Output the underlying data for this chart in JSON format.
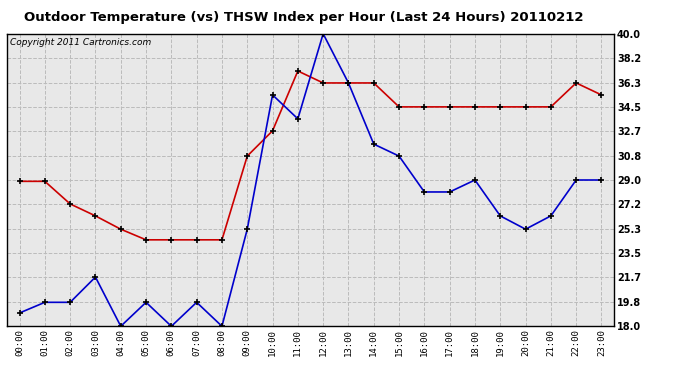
{
  "title": "Outdoor Temperature (vs) THSW Index per Hour (Last 24 Hours) 20110212",
  "copyright": "Copyright 2011 Cartronics.com",
  "hours": [
    "00:00",
    "01:00",
    "02:00",
    "03:00",
    "04:00",
    "05:00",
    "06:00",
    "07:00",
    "08:00",
    "09:00",
    "10:00",
    "11:00",
    "12:00",
    "13:00",
    "14:00",
    "15:00",
    "16:00",
    "17:00",
    "18:00",
    "19:00",
    "20:00",
    "21:00",
    "22:00",
    "23:00"
  ],
  "temp_red": [
    28.9,
    28.9,
    27.2,
    26.3,
    25.3,
    24.5,
    24.5,
    24.5,
    24.5,
    30.8,
    32.7,
    37.2,
    36.3,
    36.3,
    36.3,
    34.5,
    34.5,
    34.5,
    34.5,
    34.5,
    34.5,
    34.5,
    36.3,
    35.4
  ],
  "thsw_blue": [
    19.0,
    19.8,
    19.8,
    21.7,
    18.0,
    19.8,
    18.0,
    19.8,
    18.0,
    25.3,
    35.4,
    33.6,
    40.0,
    36.3,
    31.7,
    30.8,
    28.1,
    28.1,
    29.0,
    26.3,
    25.3,
    26.3,
    29.0,
    29.0
  ],
  "ylim": [
    18.0,
    40.0
  ],
  "yticks": [
    18.0,
    19.8,
    21.7,
    23.5,
    25.3,
    27.2,
    29.0,
    30.8,
    32.7,
    34.5,
    36.3,
    38.2,
    40.0
  ],
  "bg_color": "#ffffff",
  "plot_bg": "#e8e8e8",
  "grid_color": "#bbbbbb",
  "red_color": "#cc0000",
  "blue_color": "#0000cc",
  "title_fontsize": 9.5,
  "copyright_fontsize": 6.5
}
